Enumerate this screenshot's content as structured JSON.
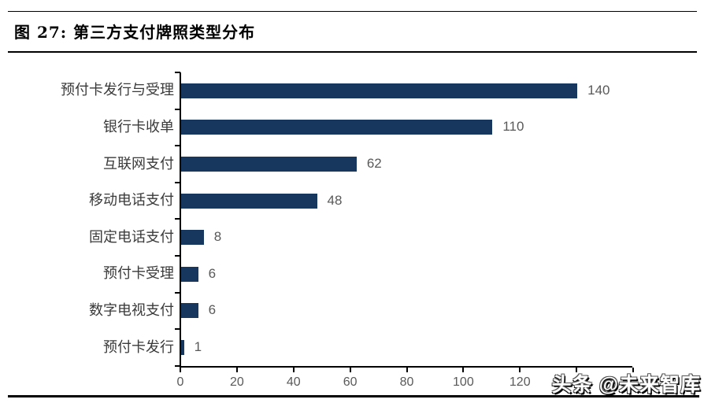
{
  "figure": {
    "title": "图 27:  第三方支付牌照类型分布"
  },
  "watermark": "头条 @未来智库",
  "colors": {
    "bar": "#17375E",
    "axis": "#000000",
    "tick_label": "#595959",
    "value_label": "#595959",
    "category_label": "#3a3a3a",
    "title": "#000000"
  },
  "chart_data": {
    "type": "bar",
    "orientation": "horizontal",
    "title": "第三方支付牌照类型分布",
    "categories": [
      "预付卡发行与受理",
      "银行卡收单",
      "互联网支付",
      "移动电话支付",
      "固定电话支付",
      "预付卡受理",
      "数字电视支付",
      "预付卡发行"
    ],
    "values": [
      140,
      110,
      62,
      48,
      8,
      6,
      6,
      1
    ],
    "xlabel": "",
    "ylabel": "",
    "xlim": [
      0,
      160
    ],
    "xticks": [
      0,
      20,
      40,
      60,
      80,
      100,
      120,
      140,
      160
    ],
    "visible_xtick_labels": [
      "0",
      "20",
      "40",
      "60",
      "80",
      "100",
      "120"
    ],
    "grid": false,
    "legend": false,
    "data_labels": true
  }
}
